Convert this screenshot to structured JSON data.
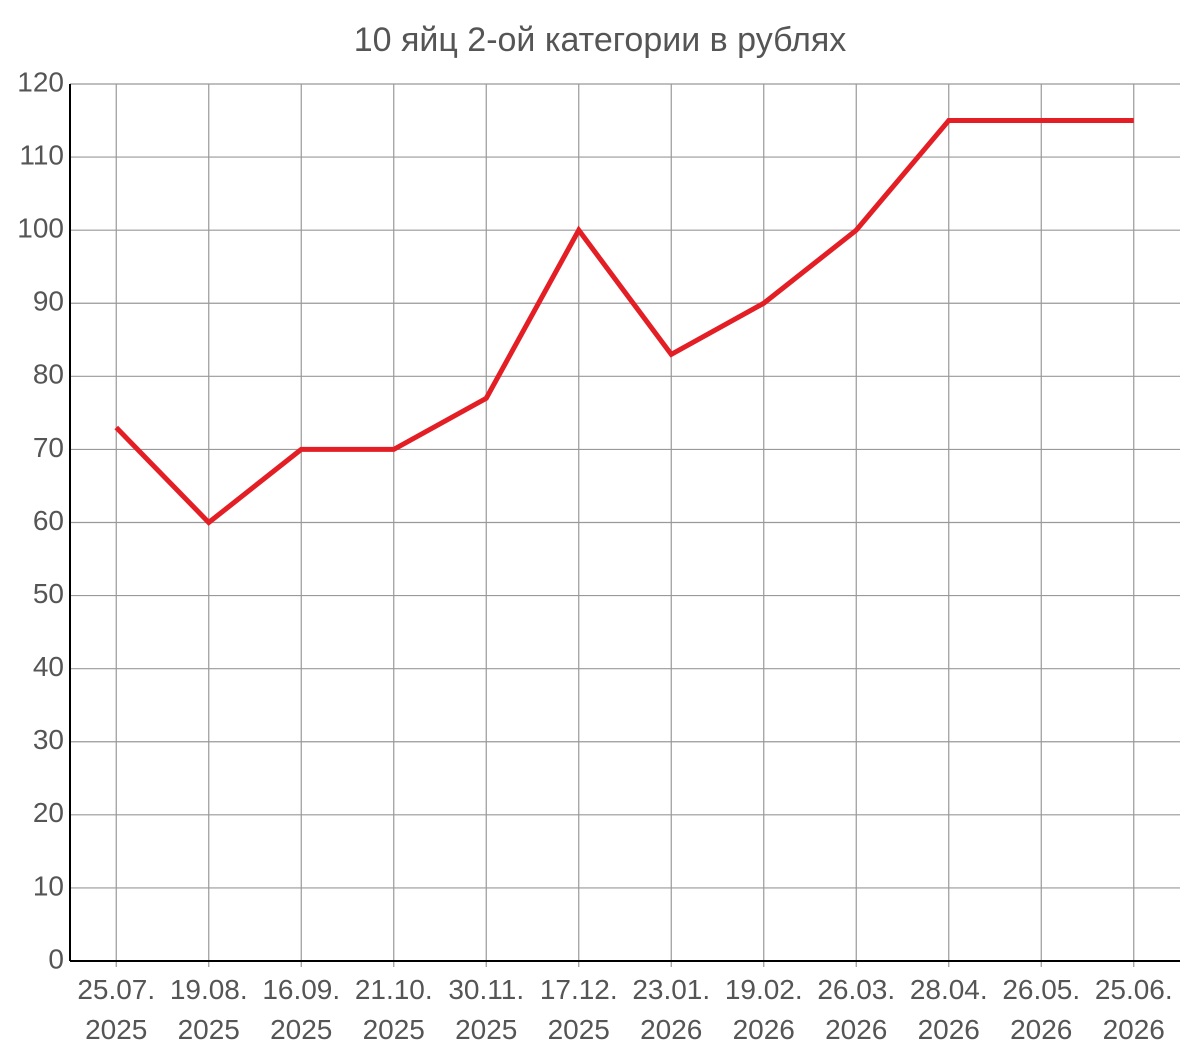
{
  "chart_data": {
    "type": "line",
    "title": "10 яйц 2-ой категории в рублях",
    "categories": [
      "25.07. 2025",
      "19.08. 2025",
      "16.09. 2025",
      "21.10. 2025",
      "30.11. 2025",
      "17.12. 2025",
      "23.01. 2026",
      "19.02. 2026",
      "26.03. 2026",
      "28.04. 2026",
      "26.05. 2026",
      "25.06. 2026"
    ],
    "values": [
      73,
      60,
      70,
      70,
      77,
      100,
      83,
      90,
      100,
      115,
      115,
      115
    ],
    "color": "#e31e24",
    "ylim": [
      0,
      120
    ],
    "yticks": [
      0,
      10,
      20,
      30,
      40,
      50,
      60,
      70,
      80,
      90,
      100,
      110,
      120
    ],
    "grid": true
  }
}
